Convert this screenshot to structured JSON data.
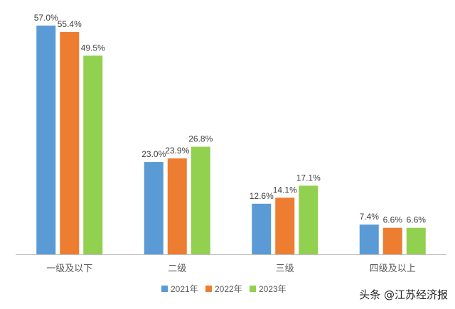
{
  "chart_data": {
    "type": "bar",
    "categories": [
      "一级及以下",
      "二级",
      "三级",
      "四级及以上"
    ],
    "series": [
      {
        "name": "2021年",
        "values": [
          57.0,
          23.0,
          12.6,
          7.4
        ],
        "labels": [
          "57.0%",
          "23.0%",
          "12.6%",
          "7.4%"
        ],
        "color": "#5b9bd5"
      },
      {
        "name": "2022年",
        "values": [
          55.4,
          23.9,
          14.1,
          6.6
        ],
        "labels": [
          "55.4%",
          "23.9%",
          "14.1%",
          "6.6%"
        ],
        "color": "#ed7d31"
      },
      {
        "name": "2023年",
        "values": [
          49.5,
          26.8,
          17.1,
          6.6
        ],
        "labels": [
          "49.5%",
          "26.8%",
          "17.1%",
          "6.6%"
        ],
        "color": "#92d050"
      }
    ],
    "ylim": [
      0,
      57.0
    ],
    "grid": false,
    "legend_position": "bottom",
    "title": "",
    "xlabel": "",
    "ylabel": ""
  },
  "watermark": "头条 @江苏经济报"
}
